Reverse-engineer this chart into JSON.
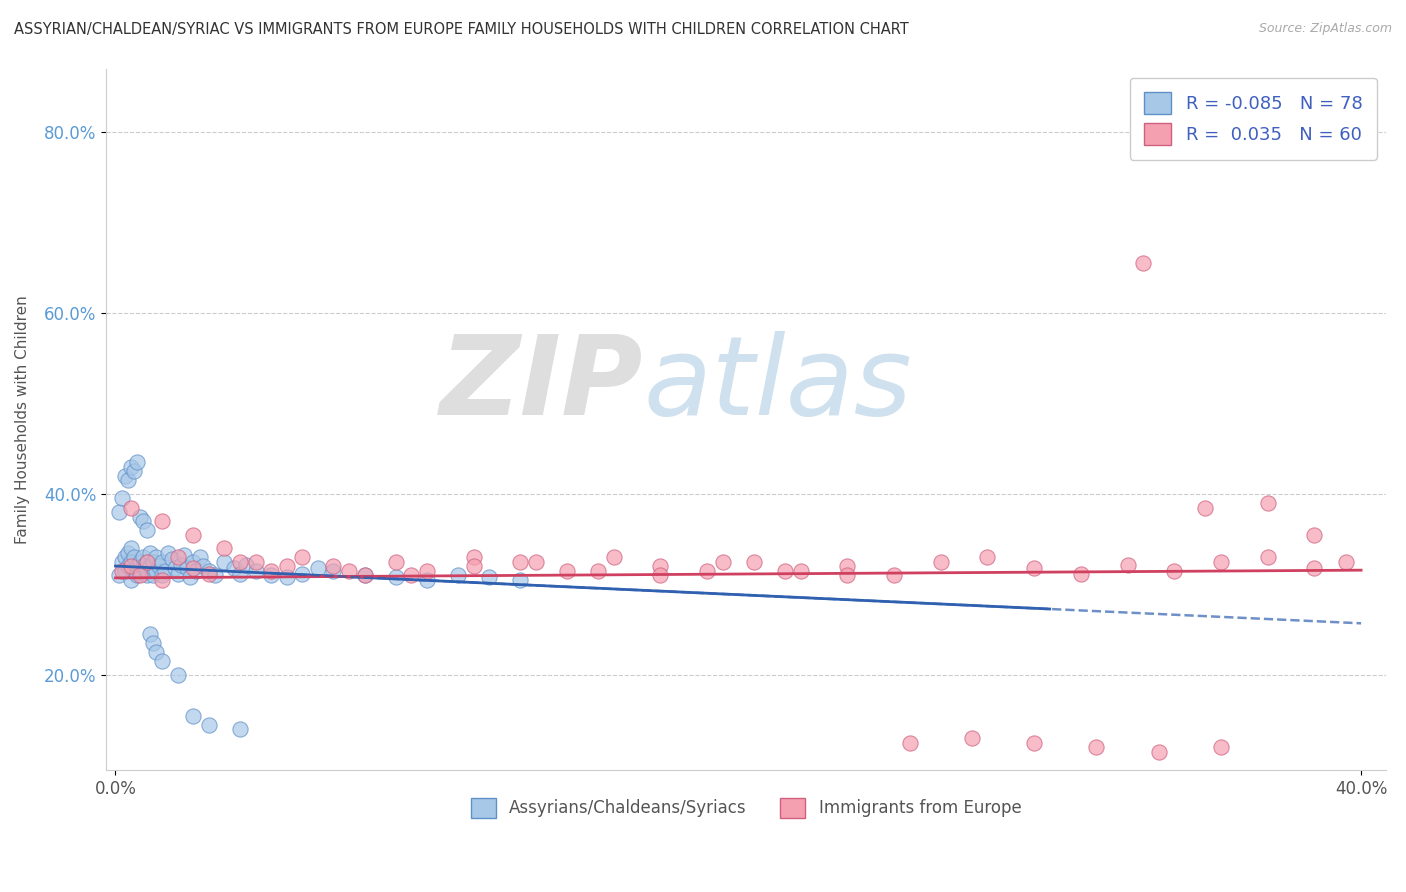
{
  "title": "ASSYRIAN/CHALDEAN/SYRIAC VS IMMIGRANTS FROM EUROPE FAMILY HOUSEHOLDS WITH CHILDREN CORRELATION CHART",
  "source": "Source: ZipAtlas.com",
  "ylabel": "Family Households with Children",
  "xlim": [
    -0.003,
    0.408
  ],
  "ylim": [
    0.095,
    0.87
  ],
  "xticks": [
    0.0,
    0.4
  ],
  "xtick_labels": [
    "0.0%",
    "40.0%"
  ],
  "yticks": [
    0.2,
    0.4,
    0.6,
    0.8
  ],
  "ytick_labels": [
    "20.0%",
    "40.0%",
    "60.0%",
    "80.0%"
  ],
  "blue_R": -0.085,
  "blue_N": 78,
  "pink_R": 0.035,
  "pink_N": 60,
  "blue_color": "#a8c8e8",
  "pink_color": "#f4a0b0",
  "blue_edge_color": "#6090c8",
  "pink_edge_color": "#d06080",
  "blue_line_color": "#3060b0",
  "pink_line_color": "#d04060",
  "title_fontsize": 10.5,
  "watermark_zip": "ZIP",
  "watermark_atlas": "atlas",
  "legend_color": "#4060c0",
  "blue_scatter_x": [
    0.001,
    0.002,
    0.003,
    0.003,
    0.004,
    0.004,
    0.005,
    0.005,
    0.005,
    0.006,
    0.006,
    0.007,
    0.007,
    0.008,
    0.008,
    0.009,
    0.009,
    0.01,
    0.01,
    0.01,
    0.011,
    0.011,
    0.012,
    0.012,
    0.013,
    0.013,
    0.014,
    0.015,
    0.015,
    0.016,
    0.017,
    0.018,
    0.019,
    0.02,
    0.021,
    0.022,
    0.023,
    0.024,
    0.025,
    0.026,
    0.027,
    0.028,
    0.03,
    0.032,
    0.035,
    0.038,
    0.04,
    0.042,
    0.045,
    0.05,
    0.055,
    0.06,
    0.065,
    0.07,
    0.08,
    0.09,
    0.1,
    0.11,
    0.12,
    0.13,
    0.001,
    0.002,
    0.003,
    0.004,
    0.005,
    0.006,
    0.007,
    0.008,
    0.009,
    0.01,
    0.011,
    0.012,
    0.013,
    0.015,
    0.02,
    0.025,
    0.03,
    0.04
  ],
  "blue_scatter_y": [
    0.31,
    0.325,
    0.33,
    0.315,
    0.335,
    0.32,
    0.34,
    0.305,
    0.325,
    0.315,
    0.33,
    0.32,
    0.31,
    0.325,
    0.315,
    0.33,
    0.32,
    0.31,
    0.325,
    0.315,
    0.335,
    0.32,
    0.31,
    0.325,
    0.315,
    0.33,
    0.32,
    0.31,
    0.325,
    0.315,
    0.335,
    0.328,
    0.318,
    0.312,
    0.322,
    0.332,
    0.318,
    0.308,
    0.325,
    0.315,
    0.33,
    0.32,
    0.315,
    0.31,
    0.325,
    0.318,
    0.312,
    0.322,
    0.315,
    0.31,
    0.308,
    0.312,
    0.318,
    0.315,
    0.31,
    0.308,
    0.305,
    0.31,
    0.308,
    0.305,
    0.38,
    0.395,
    0.42,
    0.415,
    0.43,
    0.425,
    0.435,
    0.375,
    0.37,
    0.36,
    0.245,
    0.235,
    0.225,
    0.215,
    0.2,
    0.155,
    0.145,
    0.14
  ],
  "pink_scatter_x": [
    0.002,
    0.005,
    0.008,
    0.01,
    0.015,
    0.02,
    0.025,
    0.03,
    0.04,
    0.05,
    0.06,
    0.07,
    0.08,
    0.09,
    0.1,
    0.115,
    0.13,
    0.145,
    0.16,
    0.175,
    0.19,
    0.205,
    0.22,
    0.235,
    0.25,
    0.265,
    0.28,
    0.295,
    0.31,
    0.325,
    0.34,
    0.355,
    0.37,
    0.385,
    0.395,
    0.005,
    0.015,
    0.025,
    0.035,
    0.045,
    0.055,
    0.075,
    0.095,
    0.115,
    0.135,
    0.155,
    0.175,
    0.195,
    0.215,
    0.235,
    0.255,
    0.275,
    0.295,
    0.315,
    0.335,
    0.355,
    0.37,
    0.385,
    0.33,
    0.35
  ],
  "pink_scatter_y": [
    0.315,
    0.32,
    0.31,
    0.325,
    0.305,
    0.33,
    0.318,
    0.312,
    0.325,
    0.315,
    0.33,
    0.32,
    0.31,
    0.325,
    0.315,
    0.33,
    0.325,
    0.315,
    0.33,
    0.32,
    0.315,
    0.325,
    0.315,
    0.32,
    0.31,
    0.325,
    0.33,
    0.318,
    0.312,
    0.322,
    0.315,
    0.325,
    0.33,
    0.318,
    0.325,
    0.385,
    0.37,
    0.355,
    0.34,
    0.325,
    0.32,
    0.315,
    0.31,
    0.32,
    0.325,
    0.315,
    0.31,
    0.325,
    0.315,
    0.31,
    0.125,
    0.13,
    0.125,
    0.12,
    0.115,
    0.12,
    0.39,
    0.355,
    0.655,
    0.385
  ]
}
